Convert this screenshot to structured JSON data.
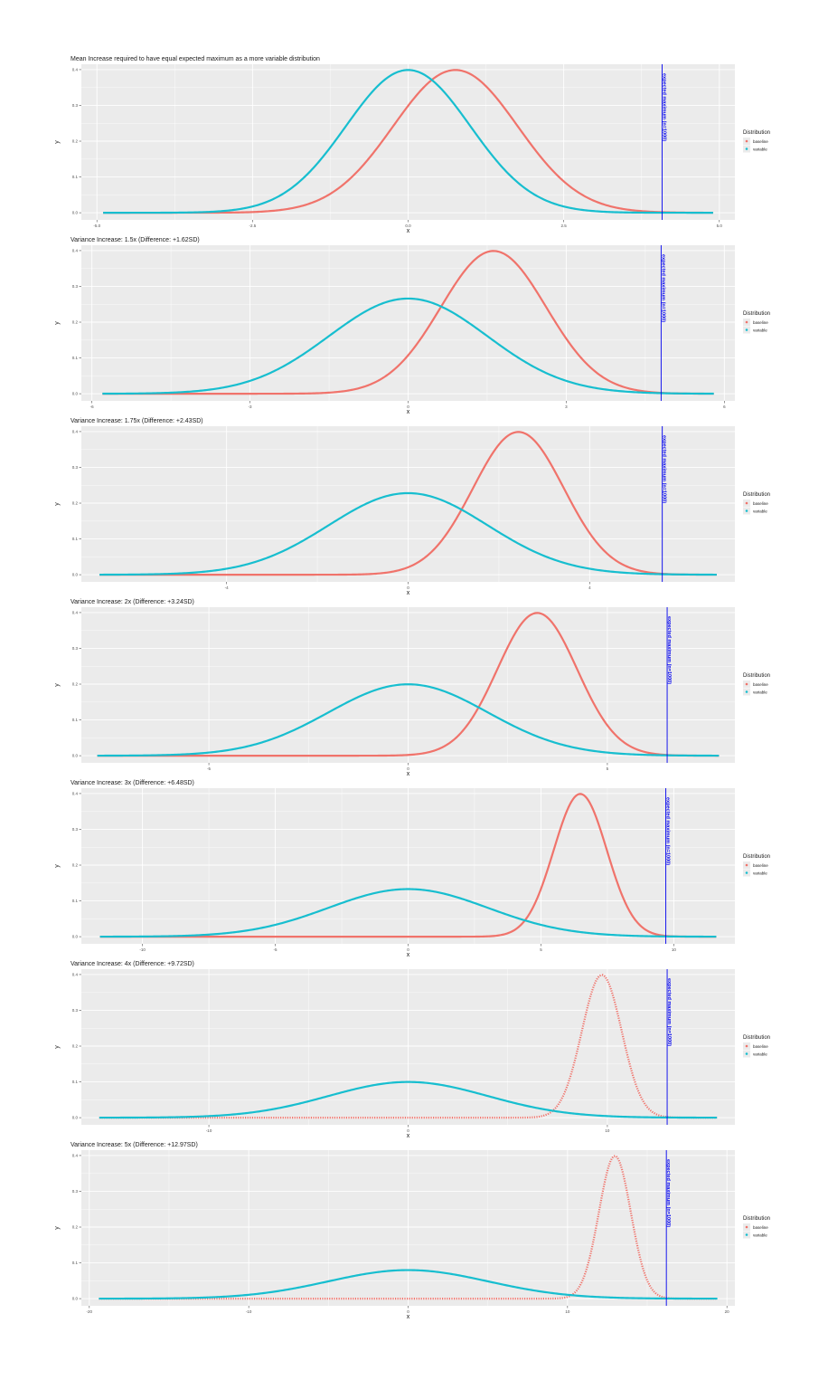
{
  "figure_title": "Mean Increase required to have equal expected maximum as a more variable distribution",
  "legend": {
    "title": "Distribution",
    "baseline_label": "baseline",
    "variable_label": "variable",
    "placement": "right"
  },
  "colors": {
    "baseline": "#f0736b",
    "variable": "#17becf",
    "vline": "#0000ee",
    "panel_bg": "#ebebeb",
    "grid": "#ffffff"
  },
  "vline_label": "expected maximum (n=1000)",
  "chart_data": [
    {
      "type": "line",
      "title": "",
      "xlabel": "x",
      "ylabel": "y",
      "sd_variable": 1,
      "mean_baseline": 0.76,
      "vline_x": 4.08,
      "xlim": [
        -5.25,
        5.25
      ],
      "ylim": [
        -0.02,
        0.415
      ],
      "xticks": [
        -5,
        -2.5,
        0,
        2.5,
        5
      ],
      "xtick_labels": [
        "-5.0",
        "-2.5",
        "0.0",
        "2.5",
        "5.0"
      ],
      "yticks": [
        0,
        0.1,
        0.2,
        0.3,
        0.4
      ],
      "ytick_labels": [
        "0.0",
        "0.1",
        "0.2",
        "0.3",
        "0.4"
      ],
      "x_range": [
        -4.9,
        4.9
      ],
      "baseline_points": false
    },
    {
      "type": "line",
      "title": "Variance Increase: 1.5x (Difference: +1.62SD)",
      "xlabel": "x",
      "ylabel": "y",
      "sd_variable": 1.5,
      "mean_baseline": 1.62,
      "vline_x": 4.8,
      "xlim": [
        -6.2,
        6.2
      ],
      "ylim": [
        -0.02,
        0.415
      ],
      "xticks": [
        -6,
        -3,
        0,
        3,
        6
      ],
      "xtick_labels": [
        "-6",
        "-3",
        "0",
        "3",
        "6"
      ],
      "yticks": [
        0,
        0.1,
        0.2,
        0.3,
        0.4
      ],
      "ytick_labels": [
        "0.0",
        "0.1",
        "0.2",
        "0.3",
        "0.4"
      ],
      "x_range": [
        -5.8,
        5.8
      ],
      "baseline_points": false
    },
    {
      "type": "line",
      "title": "Variance Increase: 1.75x (Difference: +2.43SD)",
      "xlabel": "x",
      "ylabel": "y",
      "sd_variable": 1.75,
      "mean_baseline": 2.43,
      "vline_x": 5.6,
      "xlim": [
        -7.2,
        7.2
      ],
      "ylim": [
        -0.02,
        0.415
      ],
      "xticks": [
        -4,
        0,
        4
      ],
      "xtick_labels": [
        "-4",
        "0",
        "4"
      ],
      "yticks": [
        0,
        0.1,
        0.2,
        0.3,
        0.4
      ],
      "ytick_labels": [
        "0.0",
        "0.1",
        "0.2",
        "0.3",
        "0.4"
      ],
      "x_range": [
        -6.8,
        6.8
      ],
      "baseline_points": false
    },
    {
      "type": "line",
      "title": "Variance Increase: 2x (Difference: +3.24SD)",
      "xlabel": "x",
      "ylabel": "y",
      "sd_variable": 2,
      "mean_baseline": 3.24,
      "vline_x": 6.5,
      "xlim": [
        -8.2,
        8.2
      ],
      "ylim": [
        -0.02,
        0.415
      ],
      "xticks": [
        -5,
        0,
        5
      ],
      "xtick_labels": [
        "-5",
        "0",
        "5"
      ],
      "yticks": [
        0,
        0.1,
        0.2,
        0.3,
        0.4
      ],
      "ytick_labels": [
        "0.0",
        "0.1",
        "0.2",
        "0.3",
        "0.4"
      ],
      "x_range": [
        -7.8,
        7.8
      ],
      "baseline_points": false
    },
    {
      "type": "line",
      "title": "Variance Increase: 3x (Difference: +6.48SD)",
      "xlabel": "x",
      "ylabel": "y",
      "sd_variable": 3,
      "mean_baseline": 6.48,
      "vline_x": 9.7,
      "xlim": [
        -12.3,
        12.3
      ],
      "ylim": [
        -0.02,
        0.415
      ],
      "xticks": [
        -10,
        -5,
        0,
        5,
        10
      ],
      "xtick_labels": [
        "-10",
        "-5",
        "0",
        "5",
        "10"
      ],
      "yticks": [
        0,
        0.1,
        0.2,
        0.3,
        0.4
      ],
      "ytick_labels": [
        "0.0",
        "0.1",
        "0.2",
        "0.3",
        "0.4"
      ],
      "x_range": [
        -11.6,
        11.6
      ],
      "baseline_points": false
    },
    {
      "type": "line",
      "title": "Variance Increase: 4x (Difference: +9.72SD)",
      "xlabel": "x",
      "ylabel": "y",
      "sd_variable": 4,
      "mean_baseline": 9.72,
      "vline_x": 13,
      "xlim": [
        -16.4,
        16.4
      ],
      "ylim": [
        -0.02,
        0.415
      ],
      "xticks": [
        -10,
        0,
        10
      ],
      "xtick_labels": [
        "-10",
        "0",
        "10"
      ],
      "yticks": [
        0,
        0.1,
        0.2,
        0.3,
        0.4
      ],
      "ytick_labels": [
        "0.0",
        "0.1",
        "0.2",
        "0.3",
        "0.4"
      ],
      "x_range": [
        -15.5,
        15.5
      ],
      "baseline_points": true
    },
    {
      "type": "line",
      "title": "Variance Increase: 5x (Difference: +12.97SD)",
      "xlabel": "x",
      "ylabel": "y",
      "sd_variable": 5,
      "mean_baseline": 12.97,
      "vline_x": 16.2,
      "xlim": [
        -20.5,
        20.5
      ],
      "ylim": [
        -0.02,
        0.415
      ],
      "xticks": [
        -20,
        -10,
        0,
        10,
        20
      ],
      "xtick_labels": [
        "-20",
        "-10",
        "0",
        "10",
        "20"
      ],
      "yticks": [
        0,
        0.1,
        0.2,
        0.3,
        0.4
      ],
      "ytick_labels": [
        "0.0",
        "0.1",
        "0.2",
        "0.3",
        "0.4"
      ],
      "x_range": [
        -19.4,
        19.4
      ],
      "baseline_points": true
    }
  ]
}
